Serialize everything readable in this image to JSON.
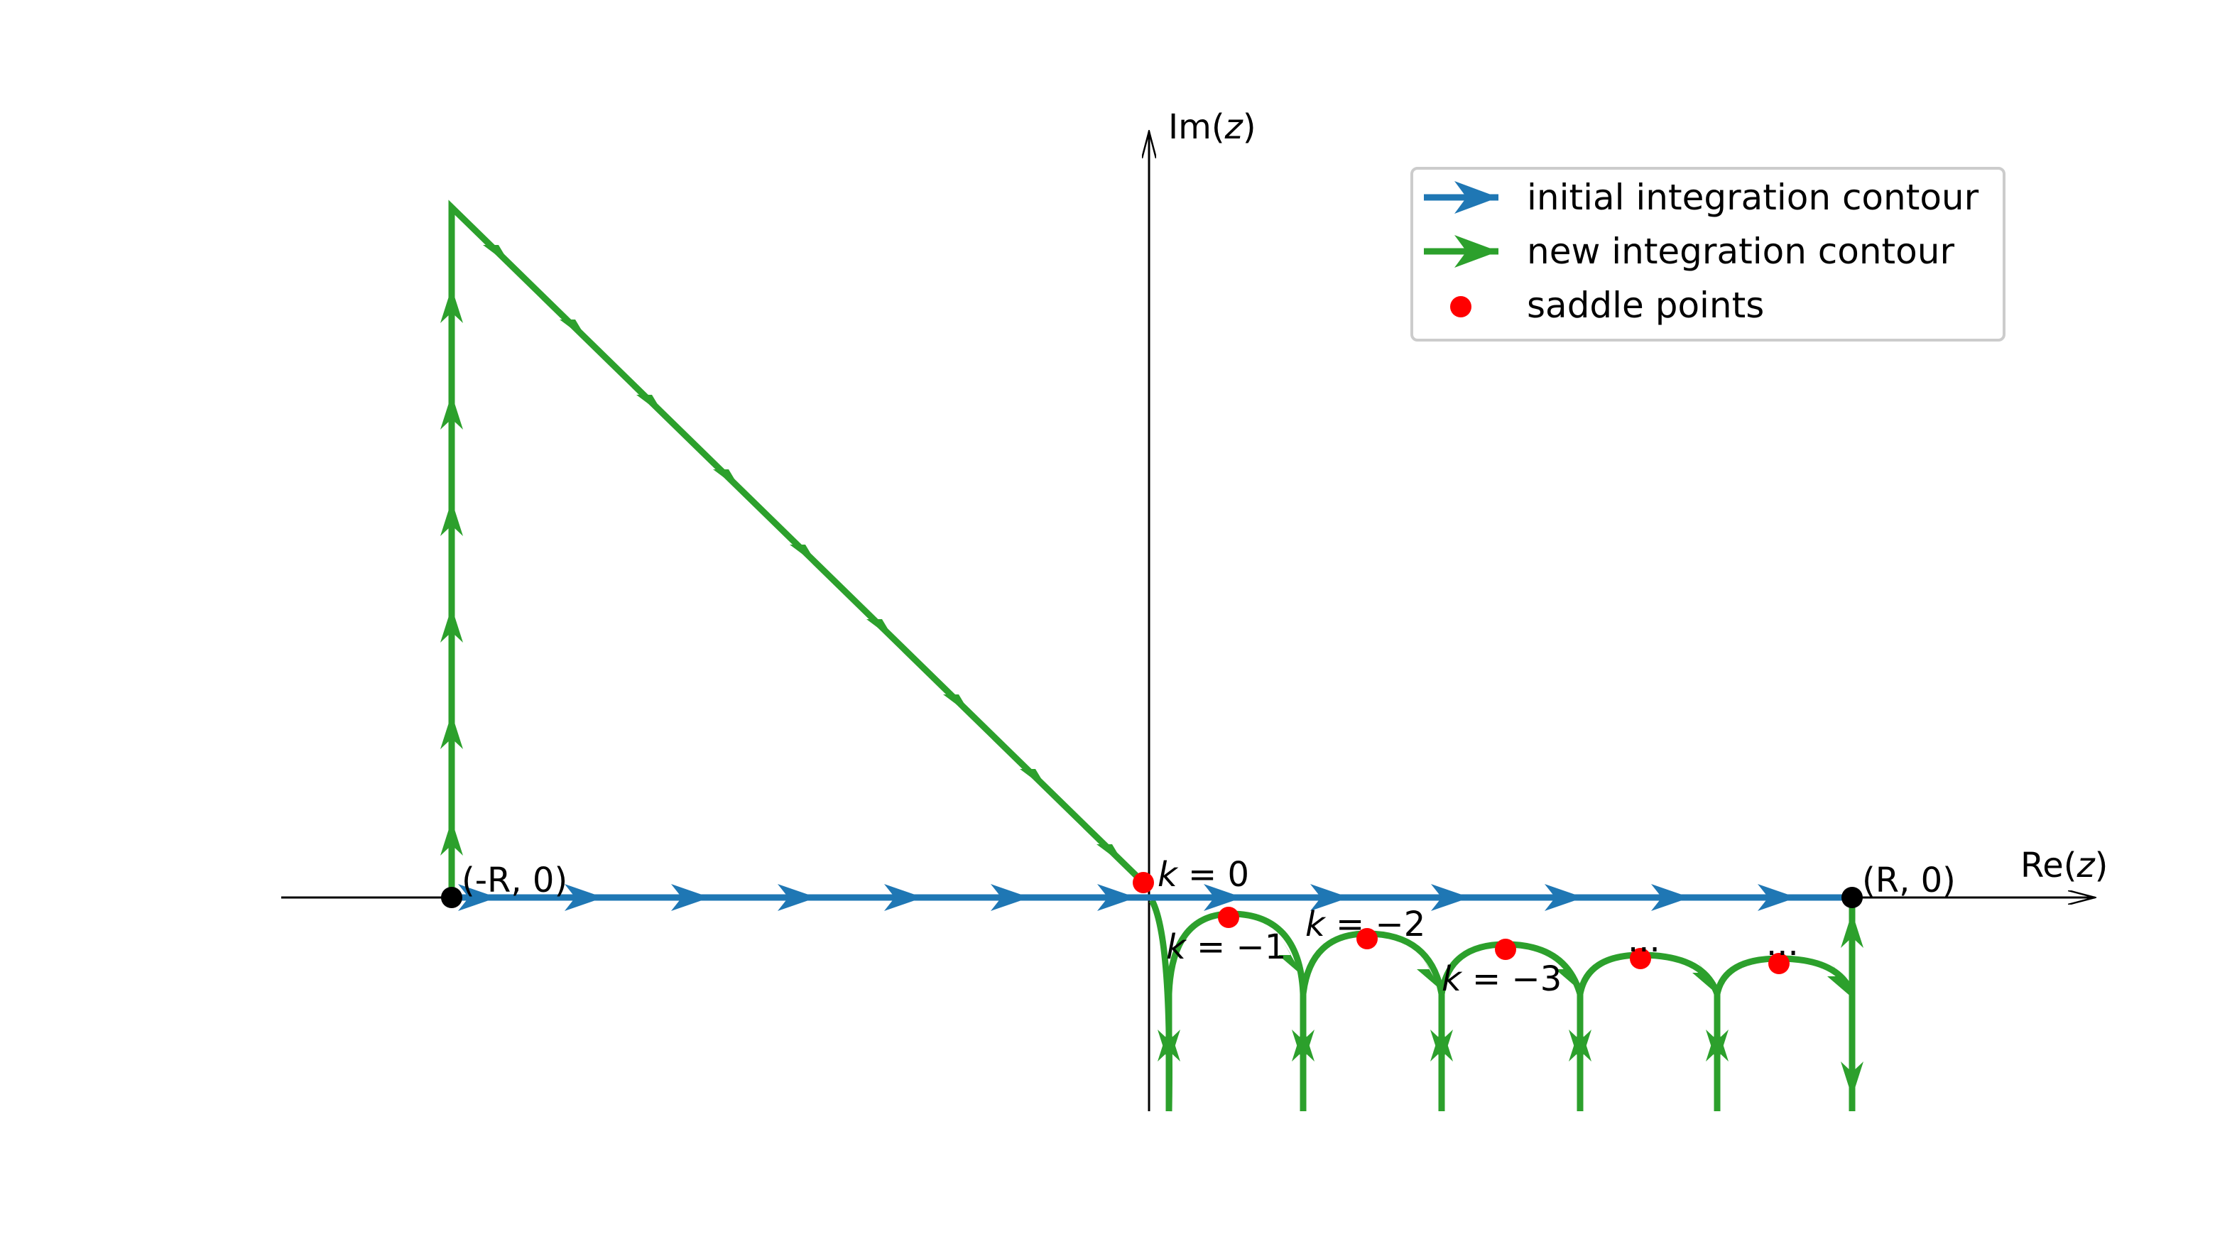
{
  "axes": {
    "x_label_prefix": "Re(",
    "x_label_var": "z",
    "x_label_suffix": ")",
    "y_label_prefix": "Im(",
    "y_label_var": "z",
    "y_label_suffix": ")"
  },
  "points": {
    "left": "(-R, 0)",
    "right": "(R, 0)"
  },
  "saddle_labels": {
    "k0_var": "k",
    "k0_rest": " = 0",
    "k1_var": "k",
    "k1_rest": " = −1",
    "k2_var": "k",
    "k2_rest": " = −2",
    "k3_var": "k",
    "k3_rest": " = −3",
    "dots4": "...",
    "dots5": "..."
  },
  "legend": {
    "items": [
      {
        "label": "initial integration contour",
        "color": "#1f77b4"
      },
      {
        "label": "new integration contour",
        "color": "#2ca02c"
      },
      {
        "label": "saddle points",
        "color": "#ff0000"
      }
    ]
  },
  "colors": {
    "initial": "#1f77b4",
    "new": "#2ca02c",
    "saddle": "#ff0000",
    "endpoint": "#000000"
  }
}
